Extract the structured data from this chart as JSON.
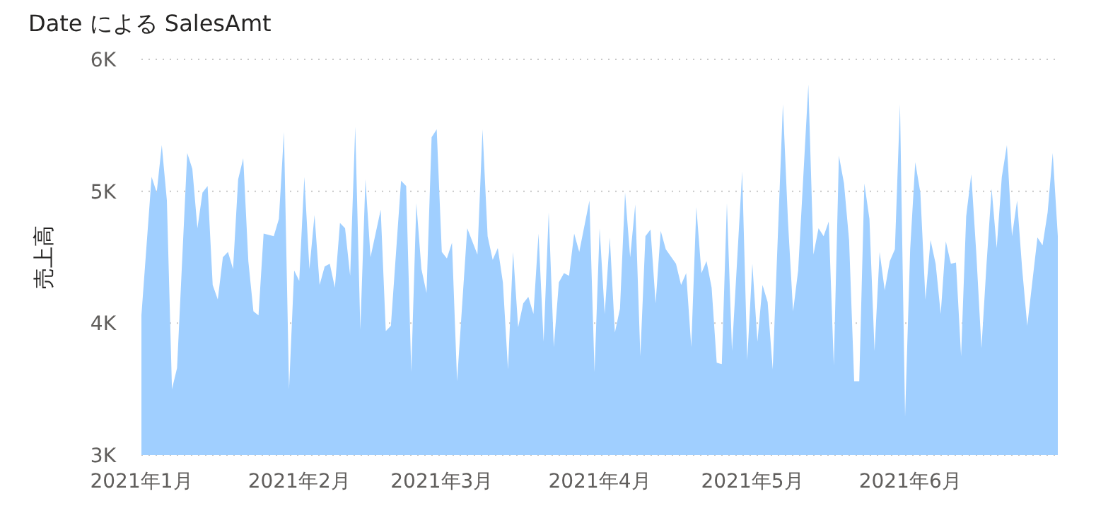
{
  "chart_data": {
    "type": "area",
    "title": "Date による SalesAmt",
    "ylabel": "売上高",
    "color": "#a0cfff",
    "grid": "y",
    "xlim": [
      "2021-01-01",
      "2021-06-30"
    ],
    "ylim": [
      3000,
      6000
    ],
    "xticks": [
      {
        "value": "2021-01-01",
        "label": "2021年1月"
      },
      {
        "value": "2021-02-01",
        "label": "2021年2月"
      },
      {
        "value": "2021-03-01",
        "label": "2021年3月"
      },
      {
        "value": "2021-04-01",
        "label": "2021年4月"
      },
      {
        "value": "2021-05-01",
        "label": "2021年5月"
      },
      {
        "value": "2021-06-01",
        "label": "2021年6月"
      }
    ],
    "yticks": [
      {
        "value": 3000,
        "label": "3K"
      },
      {
        "value": 4000,
        "label": "4K"
      },
      {
        "value": 5000,
        "label": "5K"
      },
      {
        "value": 6000,
        "label": "6K"
      }
    ],
    "x": [
      "2021-01-01",
      "2021-01-03",
      "2021-01-04",
      "2021-01-05",
      "2021-01-06",
      "2021-01-07",
      "2021-01-08",
      "2021-01-10",
      "2021-01-11",
      "2021-01-12",
      "2021-01-13",
      "2021-01-14",
      "2021-01-15",
      "2021-01-16",
      "2021-01-17",
      "2021-01-18",
      "2021-01-19",
      "2021-01-20",
      "2021-01-21",
      "2021-01-22",
      "2021-01-23",
      "2021-01-24",
      "2021-01-25",
      "2021-01-27",
      "2021-01-28",
      "2021-01-29",
      "2021-01-30",
      "2021-01-31",
      "2021-02-01",
      "2021-02-02",
      "2021-02-03",
      "2021-02-04",
      "2021-02-05",
      "2021-02-06",
      "2021-02-07",
      "2021-02-08",
      "2021-02-09",
      "2021-02-10",
      "2021-02-11",
      "2021-02-12",
      "2021-02-13",
      "2021-02-14",
      "2021-02-15",
      "2021-02-17",
      "2021-02-18",
      "2021-02-19",
      "2021-02-21",
      "2021-02-22",
      "2021-02-23",
      "2021-02-24",
      "2021-02-25",
      "2021-02-26",
      "2021-02-27",
      "2021-02-28",
      "2021-03-01",
      "2021-03-02",
      "2021-03-03",
      "2021-03-04",
      "2021-03-06",
      "2021-03-08",
      "2021-03-09",
      "2021-03-10",
      "2021-03-11",
      "2021-03-12",
      "2021-03-13",
      "2021-03-14",
      "2021-03-15",
      "2021-03-16",
      "2021-03-17",
      "2021-03-18",
      "2021-03-19",
      "2021-03-20",
      "2021-03-21",
      "2021-03-22",
      "2021-03-23",
      "2021-03-24",
      "2021-03-25",
      "2021-03-26",
      "2021-03-27",
      "2021-03-28",
      "2021-03-30",
      "2021-03-31",
      "2021-04-01",
      "2021-04-02",
      "2021-04-03",
      "2021-04-04",
      "2021-04-05",
      "2021-04-06",
      "2021-04-07",
      "2021-04-08",
      "2021-04-09",
      "2021-04-10",
      "2021-04-11",
      "2021-04-12",
      "2021-04-13",
      "2021-04-14",
      "2021-04-16",
      "2021-04-17",
      "2021-04-18",
      "2021-04-19",
      "2021-04-20",
      "2021-04-21",
      "2021-04-22",
      "2021-04-23",
      "2021-04-24",
      "2021-04-25",
      "2021-04-26",
      "2021-04-27",
      "2021-04-29",
      "2021-04-30",
      "2021-05-01",
      "2021-05-02",
      "2021-05-03",
      "2021-05-04",
      "2021-05-05",
      "2021-05-07",
      "2021-05-08",
      "2021-05-09",
      "2021-05-10",
      "2021-05-12",
      "2021-05-13",
      "2021-05-14",
      "2021-05-15",
      "2021-05-16",
      "2021-05-17",
      "2021-05-18",
      "2021-05-19",
      "2021-05-20",
      "2021-05-21",
      "2021-05-22",
      "2021-05-23",
      "2021-05-24",
      "2021-05-25",
      "2021-05-26",
      "2021-05-27",
      "2021-05-28",
      "2021-05-29",
      "2021-05-30",
      "2021-05-31",
      "2021-06-01",
      "2021-06-02",
      "2021-06-03",
      "2021-06-04",
      "2021-06-05",
      "2021-06-06",
      "2021-06-07",
      "2021-06-08",
      "2021-06-09",
      "2021-06-10",
      "2021-06-11",
      "2021-06-12",
      "2021-06-13",
      "2021-06-14",
      "2021-06-15",
      "2021-06-16",
      "2021-06-17",
      "2021-06-18",
      "2021-06-19",
      "2021-06-20",
      "2021-06-21",
      "2021-06-22",
      "2021-06-23",
      "2021-06-24",
      "2021-06-26",
      "2021-06-27",
      "2021-06-28",
      "2021-06-29",
      "2021-06-30"
    ],
    "values": [
      4060,
      5110,
      4990,
      5350,
      4930,
      3500,
      3660,
      5290,
      5170,
      4720,
      4990,
      5040,
      4290,
      4180,
      4500,
      4540,
      4410,
      5090,
      5250,
      4470,
      4090,
      4060,
      4680,
      4660,
      4790,
      5450,
      3500,
      4400,
      4320,
      5110,
      4410,
      4820,
      4290,
      4430,
      4450,
      4270,
      4760,
      4720,
      4360,
      5490,
      3950,
      5090,
      4500,
      4860,
      3940,
      3980,
      5080,
      5040,
      3630,
      4910,
      4410,
      4230,
      5410,
      5470,
      4540,
      4490,
      4610,
      3560,
      4720,
      4520,
      5470,
      4660,
      4480,
      4570,
      4310,
      3650,
      4540,
      3970,
      4150,
      4200,
      4070,
      4680,
      3860,
      4840,
      3820,
      4310,
      4380,
      4360,
      4680,
      4540,
      4930,
      3630,
      4720,
      4070,
      4650,
      3930,
      4110,
      4990,
      4500,
      4900,
      3750,
      4660,
      4710,
      4150,
      4700,
      4560,
      4450,
      4290,
      4380,
      3820,
      4880,
      4380,
      4470,
      4270,
      3700,
      3690,
      4910,
      3790,
      5150,
      3720,
      4450,
      3860,
      4290,
      4160,
      3650,
      5660,
      4770,
      4090,
      4400,
      5810,
      4520,
      4720,
      4660,
      4770,
      3680,
      5270,
      5060,
      4630,
      3560,
      3560,
      5060,
      4790,
      3790,
      4540,
      4250,
      4470,
      4560,
      5660,
      3290,
      4560,
      5220,
      4990,
      4180,
      4630,
      4450,
      4070,
      4620,
      4450,
      4460,
      3750,
      4810,
      5130,
      4520,
      3810,
      4450,
      5020,
      4570,
      5110,
      5350,
      4660,
      4930,
      4410,
      3980,
      4650,
      4590,
      4840,
      5290,
      4660
    ]
  }
}
